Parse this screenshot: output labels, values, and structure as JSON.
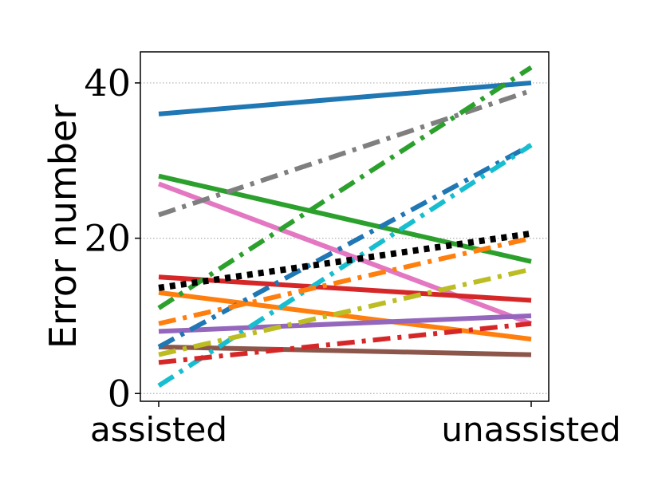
{
  "chart_data": {
    "type": "line",
    "title": "",
    "xlabel": "",
    "ylabel": "Error number",
    "categories": [
      "assisted",
      "unassisted"
    ],
    "yticks": [
      0,
      20,
      40
    ],
    "ylim": [
      -1,
      44
    ],
    "grid": "horizontal dotted",
    "legend": "none",
    "series": [
      {
        "values": [
          36,
          40
        ],
        "color": "#1f77b4",
        "style": "solid"
      },
      {
        "values": [
          28,
          17
        ],
        "color": "#2ca02c",
        "style": "solid"
      },
      {
        "values": [
          27,
          9
        ],
        "color": "#e377c2",
        "style": "solid"
      },
      {
        "values": [
          15,
          12
        ],
        "color": "#d62728",
        "style": "solid"
      },
      {
        "values": [
          13,
          7
        ],
        "color": "#ff7f0e",
        "style": "solid"
      },
      {
        "values": [
          8,
          10
        ],
        "color": "#9467bd",
        "style": "solid"
      },
      {
        "values": [
          6,
          5
        ],
        "color": "#8c564b",
        "style": "solid"
      },
      {
        "values": [
          23,
          39
        ],
        "color": "#7f7f7f",
        "style": "dashdot"
      },
      {
        "values": [
          11,
          42
        ],
        "color": "#2ca02c",
        "style": "dashdot"
      },
      {
        "values": [
          6,
          32
        ],
        "color": "#1f77b4",
        "style": "dashdot"
      },
      {
        "values": [
          1,
          32
        ],
        "color": "#17becf",
        "style": "dashdot"
      },
      {
        "values": [
          9,
          20
        ],
        "color": "#ff7f0e",
        "style": "dashdot"
      },
      {
        "values": [
          5,
          16
        ],
        "color": "#bcbd22",
        "style": "dashdot"
      },
      {
        "values": [
          4,
          9
        ],
        "color": "#d62728",
        "style": "dashdot"
      },
      {
        "values": [
          13.6,
          20.6
        ],
        "color": "#000000",
        "style": "dotted"
      }
    ]
  }
}
